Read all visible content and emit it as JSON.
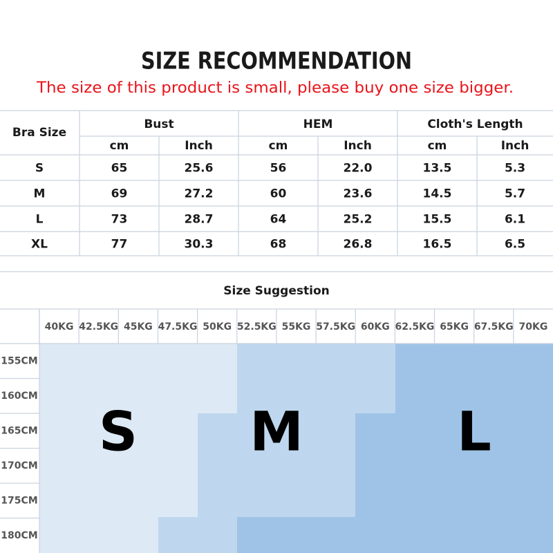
{
  "header": {
    "title": "SIZE RECOMMENDATION",
    "subtitle": "The size of this product is small, please buy one size bigger."
  },
  "size_table": {
    "columns": [
      "Bra Size",
      "Bust",
      "HEM",
      "Cloth's Length"
    ],
    "units": [
      "cm",
      "Inch",
      "cm",
      "Inch",
      "cm",
      "Inch"
    ],
    "rows": [
      [
        "S",
        "65",
        "25.6",
        "56",
        "22.0",
        "13.5",
        "5.3"
      ],
      [
        "M",
        "69",
        "27.2",
        "60",
        "23.6",
        "14.5",
        "5.7"
      ],
      [
        "L",
        "73",
        "28.7",
        "64",
        "25.2",
        "15.5",
        "6.1"
      ],
      [
        "XL",
        "77",
        "30.3",
        "68",
        "26.8",
        "16.5",
        "6.5"
      ]
    ]
  },
  "suggestion": {
    "title": "Size Suggestion",
    "weights": [
      "40KG",
      "42.5KG",
      "45KG",
      "47.5KG",
      "50KG",
      "52.5KG",
      "55KG",
      "57.5KG",
      "60KG",
      "62.5KG",
      "65KG",
      "67.5KG",
      "70KG"
    ],
    "heights": [
      "155CM",
      "160CM",
      "165CM",
      "170CM",
      "175CM",
      "180CM"
    ],
    "sizes": [
      "S",
      "M",
      "L"
    ]
  }
}
